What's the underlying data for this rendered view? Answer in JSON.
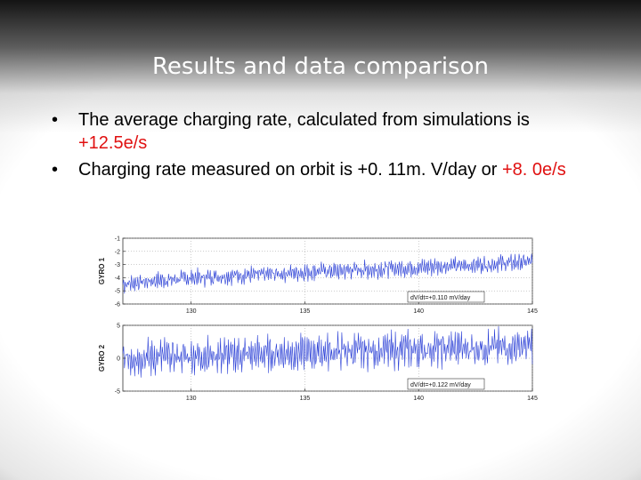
{
  "slide": {
    "title": "Results and data comparison",
    "bullet_glyph": "•",
    "bullets": [
      {
        "text": "The average charging rate, calculated from simulations is ",
        "highlight": "+12.5e/s"
      },
      {
        "text": "Charging rate measured on orbit is +0. 11m. V/day or ",
        "highlight": "+8. 0e/s"
      }
    ],
    "highlight_color": "#e01010"
  },
  "chart_data": [
    {
      "type": "line",
      "ylabel": "GYRO 1",
      "xlim": [
        127,
        145
      ],
      "ylim": [
        -6,
        -1
      ],
      "xticks": [
        130,
        135,
        140,
        145
      ],
      "yticks": [
        -1,
        -2,
        -3,
        -4,
        -5,
        -6
      ],
      "grid": true,
      "line_color": "#2a3fd6",
      "annotation": "dV/dt=+0.110 mV/day",
      "annotation_position": "bottom-right",
      "series": [
        {
          "x": [
            127,
            127.5,
            128,
            128.5,
            129,
            129.5,
            130,
            130.5,
            131,
            131.5,
            132,
            132.5,
            133,
            133.5,
            134,
            134.5,
            135,
            135.5,
            136,
            136.5,
            137,
            137.5,
            138,
            138.5,
            139,
            139.5,
            140,
            140.5,
            141,
            141.5,
            142,
            142.5,
            143,
            143.5,
            144,
            144.5,
            145
          ],
          "values": [
            -4.5,
            -4.4,
            -4.3,
            -4.2,
            -4.2,
            -4.1,
            -4.0,
            -4.0,
            -3.9,
            -3.9,
            -3.8,
            -3.8,
            -3.8,
            -3.7,
            -3.7,
            -3.6,
            -3.6,
            -3.5,
            -3.5,
            -3.5,
            -3.4,
            -3.4,
            -3.4,
            -3.3,
            -3.3,
            -3.3,
            -3.2,
            -3.2,
            -3.1,
            -3.1,
            -3.1,
            -3.0,
            -3.0,
            -2.9,
            -2.9,
            -2.8,
            -2.8
          ],
          "amplitude": 0.8
        }
      ]
    },
    {
      "type": "line",
      "ylabel": "GYRO 2",
      "xlim": [
        127,
        145
      ],
      "ylim": [
        -5,
        5
      ],
      "xticks": [
        130,
        135,
        140,
        145
      ],
      "yticks": [
        5,
        0,
        -5
      ],
      "grid": true,
      "line_color": "#2a3fd6",
      "annotation": "dV/dt=+0.122 mV/day",
      "annotation_position": "bottom-right",
      "series": [
        {
          "x": [
            127,
            127.5,
            128,
            128.5,
            129,
            129.5,
            130,
            130.5,
            131,
            131.5,
            132,
            132.5,
            133,
            133.5,
            134,
            134.5,
            135,
            135.5,
            136,
            136.5,
            137,
            137.5,
            138,
            138.5,
            139,
            139.5,
            140,
            140.5,
            141,
            141.5,
            142,
            142.5,
            143,
            143.5,
            144,
            144.5,
            145
          ],
          "values": [
            0.0,
            0.1,
            0.1,
            0.2,
            0.2,
            0.3,
            0.3,
            0.4,
            0.4,
            0.5,
            0.5,
            0.6,
            0.6,
            0.7,
            0.7,
            0.8,
            0.8,
            0.9,
            0.9,
            1.0,
            1.0,
            1.1,
            1.1,
            1.2,
            1.2,
            1.3,
            1.3,
            1.4,
            1.4,
            1.5,
            1.5,
            1.6,
            1.6,
            1.7,
            1.7,
            1.8,
            1.8
          ],
          "amplitude": 3.3
        }
      ]
    }
  ]
}
